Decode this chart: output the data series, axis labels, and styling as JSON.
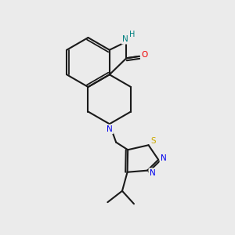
{
  "bg_color": "#ebebeb",
  "bond_color": "#1a1a1a",
  "N_color": "#0000ee",
  "O_color": "#ee0000",
  "S_color": "#ccaa00",
  "NH_color": "#008080",
  "line_width": 1.5,
  "figsize": [
    3.0,
    3.0
  ],
  "dpi": 100,
  "xlim": [
    0,
    10
  ],
  "ylim": [
    0,
    10
  ]
}
